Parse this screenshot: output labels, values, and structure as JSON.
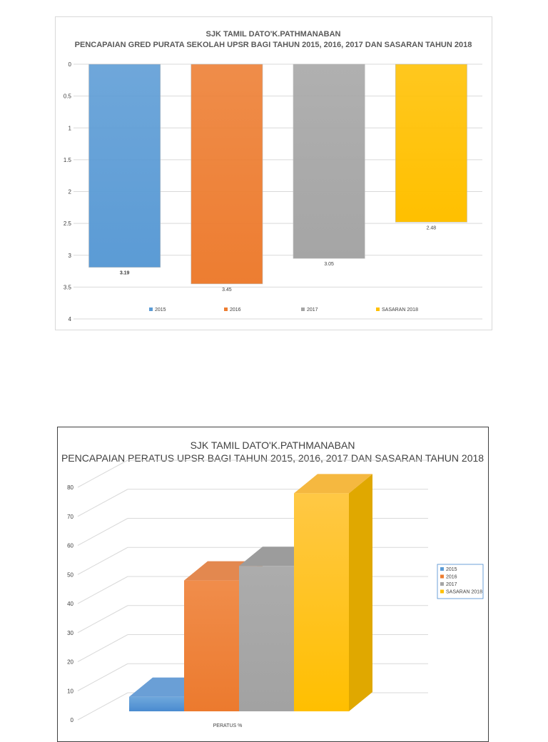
{
  "chart_data": [
    {
      "type": "bar",
      "title": "SJK TAMIL DATO'K.PATHMANABAN",
      "subtitle": "PENCAPAIAN GRED PURATA SEKOLAH  UPSR BAGI TAHUN 2015, 2016, 2017 DAN SASARAN TAHUN 2018",
      "categories": [
        "2015",
        "2016",
        "2017",
        "SASARAN 2018"
      ],
      "values": [
        3.19,
        3.45,
        3.05,
        2.48
      ],
      "value_labels": [
        "3.19",
        "3.45",
        "3.05",
        "2.48"
      ],
      "series_colors": [
        "#5b9bd5",
        "#ed7d31",
        "#a5a5a5",
        "#ffc000"
      ],
      "yticks": [
        "0",
        "0.5",
        "1",
        "1.5",
        "2",
        "2.5",
        "3",
        "3.5",
        "4"
      ],
      "ylim": [
        0,
        4
      ],
      "y_reversed": true,
      "grid": true,
      "legend": "bottom",
      "xlabel": "",
      "ylabel": ""
    },
    {
      "type": "bar",
      "style": "3d",
      "title": "SJK TAMIL DATO'K.PATHMANABAN",
      "subtitle": "PENCAPAIAN PERATUS UPSR BAGI TAHUN 2015, 2016, 2017 DAN SASARAN TAHUN 2018",
      "categories": [
        "PERATUS %"
      ],
      "series": [
        {
          "name": "2015",
          "values": [
            5
          ]
        },
        {
          "name": "2016",
          "values": [
            45
          ]
        },
        {
          "name": "2017",
          "values": [
            50
          ]
        },
        {
          "name": "SASARAN 2018",
          "values": [
            75
          ]
        }
      ],
      "series_colors": [
        "#5b9bd5",
        "#ed7d31",
        "#a5a5a5",
        "#ffc000"
      ],
      "yticks": [
        "0",
        "10",
        "20",
        "30",
        "40",
        "50",
        "60",
        "70",
        "80"
      ],
      "ylim": [
        0,
        80
      ],
      "grid": true,
      "legend": "right",
      "xlabel": "PERATUS %",
      "ylabel": ""
    }
  ]
}
